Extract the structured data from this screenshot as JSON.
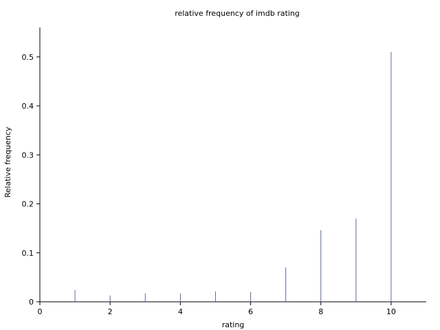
{
  "chart_data": {
    "type": "bar",
    "title": "relative frequency of imdb rating",
    "xlabel": "rating",
    "ylabel": "Relative frequency",
    "xlim": [
      0,
      11
    ],
    "ylim": [
      0,
      0.56
    ],
    "xticks": [
      0,
      2,
      4,
      6,
      8,
      10
    ],
    "xtick_labels": [
      "0",
      "2",
      "4",
      "6",
      "8",
      "10"
    ],
    "yticks": [
      0,
      0.1,
      0.2,
      0.3,
      0.4,
      0.5
    ],
    "ytick_labels": [
      "0",
      "0.1",
      "0.2",
      "0.3",
      "0.4",
      "0.5"
    ],
    "grid": false,
    "bar_color": "#5a6aa0",
    "x": [
      1,
      2,
      3,
      4,
      5,
      6,
      7,
      8,
      9,
      10
    ],
    "values": [
      0.024,
      0.013,
      0.017,
      0.017,
      0.021,
      0.02,
      0.07,
      0.146,
      0.17,
      0.51
    ]
  }
}
